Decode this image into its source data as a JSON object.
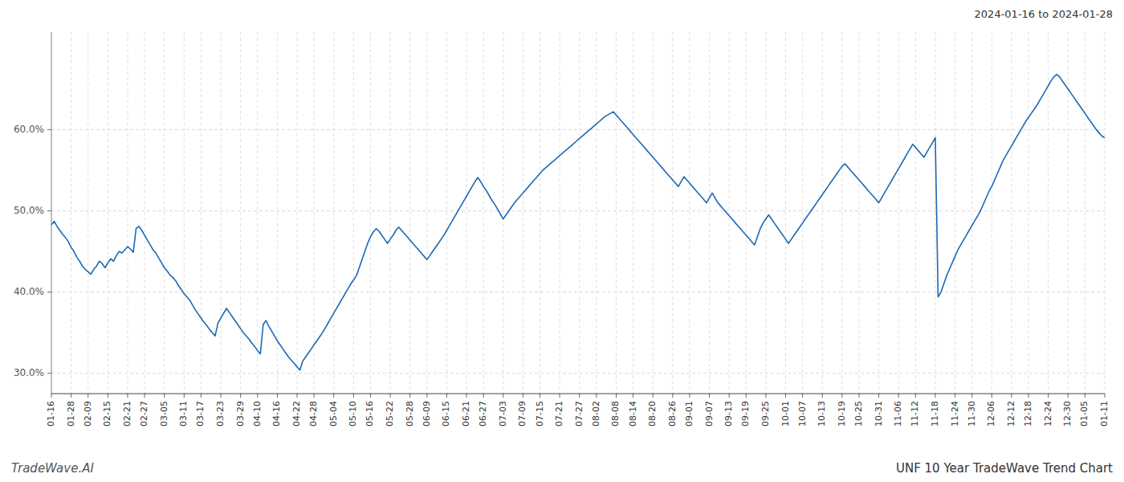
{
  "chart_data": {
    "type": "line",
    "title": "UNF 10 Year TradeWave Trend Chart",
    "subtitle": "2024-01-16 to 2024-01-28",
    "annotations": [
      "TradeWave.AI"
    ],
    "color": "#1a6ab5",
    "grid": true,
    "ylim": [
      0.275,
      0.72
    ],
    "yticks": [
      {
        "value": 0.3,
        "label": "30.0%"
      },
      {
        "value": 0.4,
        "label": "40.0%"
      },
      {
        "value": 0.5,
        "label": "50.0%"
      },
      {
        "value": 0.6,
        "label": "60.0%"
      }
    ],
    "categories": [
      "01-16",
      null,
      null,
      null,
      null,
      null,
      null,
      "01-28",
      null,
      null,
      null,
      null,
      null,
      "02-09",
      null,
      null,
      null,
      null,
      null,
      null,
      "02-15",
      null,
      null,
      null,
      null,
      null,
      null,
      "02-21",
      null,
      null,
      null,
      null,
      null,
      "02-27",
      null,
      null,
      null,
      null,
      null,
      null,
      "03-05",
      null,
      null,
      null,
      null,
      null,
      null,
      "03-11",
      null,
      null,
      null,
      null,
      null,
      "03-17",
      null,
      null,
      null,
      null,
      null,
      null,
      "03-23",
      null,
      null,
      null,
      null,
      null,
      null,
      "03-29",
      null,
      null,
      null,
      null,
      null,
      "04-10",
      null,
      null,
      null,
      null,
      null,
      null,
      "04-16",
      null,
      null,
      null,
      null,
      null,
      null,
      "04-22",
      null,
      null,
      null,
      null,
      null,
      "04-28",
      null,
      null,
      null,
      null,
      null,
      null,
      "05-04",
      null,
      null,
      null,
      null,
      null,
      null,
      "05-10",
      null,
      null,
      null,
      null,
      null,
      "05-16",
      null,
      null,
      null,
      null,
      null,
      null,
      "05-22",
      null,
      null,
      null,
      null,
      null,
      null,
      "05-28",
      null,
      null,
      null,
      null,
      null,
      "06-09",
      null,
      null,
      null,
      null,
      null,
      null,
      "06-15",
      null,
      null,
      null,
      null,
      null,
      null,
      "06-21",
      null,
      null,
      null,
      null,
      null,
      "06-27",
      null,
      null,
      null,
      null,
      null,
      null,
      "07-03",
      null,
      null,
      null,
      null,
      null,
      null,
      "07-09",
      null,
      null,
      null,
      null,
      null,
      "07-15",
      null,
      null,
      null,
      null,
      null,
      null,
      "07-21",
      null,
      null,
      null,
      null,
      null,
      null,
      "07-27",
      null,
      null,
      null,
      null,
      null,
      "08-02",
      null,
      null,
      null,
      null,
      null,
      null,
      "08-08",
      null,
      null,
      null,
      null,
      null,
      "08-14",
      null,
      null,
      null,
      null,
      null,
      null,
      "08-20",
      null,
      null,
      null,
      null,
      null,
      null,
      "08-26",
      null,
      null,
      null,
      null,
      null,
      "09-01",
      null,
      null,
      null,
      null,
      null,
      null,
      "09-07",
      null,
      null,
      null,
      null,
      null,
      null,
      "09-13",
      null,
      null,
      null,
      null,
      null,
      "09-19",
      null,
      null,
      null,
      null,
      null,
      null,
      "09-25",
      null,
      null,
      null,
      null,
      null,
      null,
      "10-01",
      null,
      null,
      null,
      null,
      null,
      "10-07",
      null,
      null,
      null,
      null,
      null,
      null,
      "10-13",
      null,
      null,
      null,
      null,
      null,
      null,
      "10-19",
      null,
      null,
      null,
      null,
      null,
      "10-25",
      null,
      null,
      null,
      null,
      null,
      null,
      "10-31",
      null,
      null,
      null,
      null,
      null,
      null,
      "11-06",
      null,
      null,
      null,
      null,
      null,
      "11-12",
      null,
      null,
      null,
      null,
      null,
      null,
      "11-18",
      null,
      null,
      null,
      null,
      null,
      null,
      "11-24",
      null,
      null,
      null,
      null,
      null,
      "11-30",
      null,
      null,
      null,
      null,
      null,
      null,
      "12-06",
      null,
      null,
      null,
      null,
      null,
      null,
      "12-12",
      null,
      null,
      null,
      null,
      null,
      "12-18",
      null,
      null,
      null,
      null,
      null,
      null,
      "12-24",
      null,
      null,
      null,
      null,
      null,
      null,
      "12-30",
      null,
      null,
      null,
      null,
      null,
      "01-05",
      null,
      null,
      null,
      null,
      null,
      null,
      "01-11"
    ],
    "values": [
      0.483,
      0.487,
      0.481,
      0.476,
      0.471,
      0.467,
      0.462,
      0.455,
      0.45,
      0.443,
      0.438,
      0.432,
      0.428,
      0.425,
      0.422,
      0.428,
      0.432,
      0.438,
      0.435,
      0.43,
      0.436,
      0.441,
      0.438,
      0.445,
      0.45,
      0.448,
      0.452,
      0.456,
      0.453,
      0.449,
      0.478,
      0.481,
      0.476,
      0.47,
      0.464,
      0.458,
      0.452,
      0.448,
      0.442,
      0.436,
      0.43,
      0.426,
      0.421,
      0.418,
      0.414,
      0.408,
      0.403,
      0.398,
      0.394,
      0.39,
      0.384,
      0.378,
      0.373,
      0.368,
      0.363,
      0.359,
      0.354,
      0.35,
      0.346,
      0.362,
      0.368,
      0.374,
      0.38,
      0.375,
      0.37,
      0.365,
      0.36,
      0.355,
      0.35,
      0.346,
      0.342,
      0.337,
      0.333,
      0.328,
      0.324,
      0.36,
      0.365,
      0.358,
      0.352,
      0.346,
      0.34,
      0.335,
      0.33,
      0.325,
      0.32,
      0.316,
      0.312,
      0.308,
      0.304,
      0.315,
      0.32,
      0.325,
      0.33,
      0.335,
      0.34,
      0.345,
      0.35,
      0.356,
      0.362,
      0.368,
      0.374,
      0.38,
      0.386,
      0.392,
      0.398,
      0.404,
      0.41,
      0.415,
      0.42,
      0.43,
      0.44,
      0.45,
      0.46,
      0.468,
      0.474,
      0.478,
      0.475,
      0.47,
      0.465,
      0.46,
      0.465,
      0.47,
      0.476,
      0.48,
      0.476,
      0.472,
      0.468,
      0.464,
      0.46,
      0.456,
      0.452,
      0.448,
      0.444,
      0.44,
      0.445,
      0.45,
      0.455,
      0.46,
      0.465,
      0.47,
      0.476,
      0.482,
      0.488,
      0.494,
      0.5,
      0.506,
      0.512,
      0.518,
      0.524,
      0.53,
      0.536,
      0.541,
      0.536,
      0.53,
      0.525,
      0.519,
      0.513,
      0.508,
      0.502,
      0.496,
      0.49,
      0.495,
      0.5,
      0.505,
      0.51,
      0.514,
      0.518,
      0.522,
      0.526,
      0.53,
      0.534,
      0.538,
      0.542,
      0.546,
      0.55,
      0.553,
      0.556,
      0.559,
      0.562,
      0.565,
      0.568,
      0.571,
      0.574,
      0.577,
      0.58,
      0.583,
      0.586,
      0.589,
      0.592,
      0.595,
      0.598,
      0.601,
      0.604,
      0.607,
      0.61,
      0.613,
      0.616,
      0.618,
      0.62,
      0.622,
      0.618,
      0.614,
      0.61,
      0.606,
      0.602,
      0.598,
      0.594,
      0.59,
      0.586,
      0.582,
      0.578,
      0.574,
      0.57,
      0.566,
      0.562,
      0.558,
      0.554,
      0.55,
      0.546,
      0.542,
      0.538,
      0.534,
      0.53,
      0.536,
      0.542,
      0.538,
      0.534,
      0.53,
      0.526,
      0.522,
      0.518,
      0.514,
      0.51,
      0.516,
      0.522,
      0.516,
      0.51,
      0.506,
      0.502,
      0.498,
      0.494,
      0.49,
      0.486,
      0.482,
      0.478,
      0.474,
      0.47,
      0.466,
      0.462,
      0.458,
      0.468,
      0.478,
      0.485,
      0.49,
      0.495,
      0.49,
      0.485,
      0.48,
      0.475,
      0.47,
      0.465,
      0.46,
      0.465,
      0.47,
      0.475,
      0.48,
      0.485,
      0.49,
      0.495,
      0.5,
      0.505,
      0.51,
      0.515,
      0.52,
      0.525,
      0.53,
      0.535,
      0.54,
      0.545,
      0.55,
      0.555,
      0.558,
      0.554,
      0.55,
      0.546,
      0.542,
      0.538,
      0.534,
      0.53,
      0.526,
      0.522,
      0.518,
      0.514,
      0.51,
      0.516,
      0.522,
      0.528,
      0.534,
      0.54,
      0.546,
      0.552,
      0.558,
      0.564,
      0.57,
      0.576,
      0.582,
      0.578,
      0.574,
      0.57,
      0.566,
      0.572,
      0.578,
      0.584,
      0.59,
      0.394,
      0.4,
      0.41,
      0.42,
      0.428,
      0.436,
      0.444,
      0.452,
      0.458,
      0.464,
      0.47,
      0.476,
      0.482,
      0.488,
      0.494,
      0.5,
      0.508,
      0.516,
      0.524,
      0.53,
      0.538,
      0.546,
      0.554,
      0.562,
      0.568,
      0.574,
      0.58,
      0.586,
      0.592,
      0.598,
      0.604,
      0.61,
      0.615,
      0.62,
      0.625,
      0.63,
      0.636,
      0.642,
      0.648,
      0.654,
      0.66,
      0.665,
      0.668,
      0.665,
      0.66,
      0.655,
      0.65,
      0.645,
      0.64,
      0.635,
      0.63,
      0.625,
      0.62,
      0.615,
      0.61,
      0.605,
      0.6,
      0.596,
      0.592,
      0.59
    ]
  }
}
